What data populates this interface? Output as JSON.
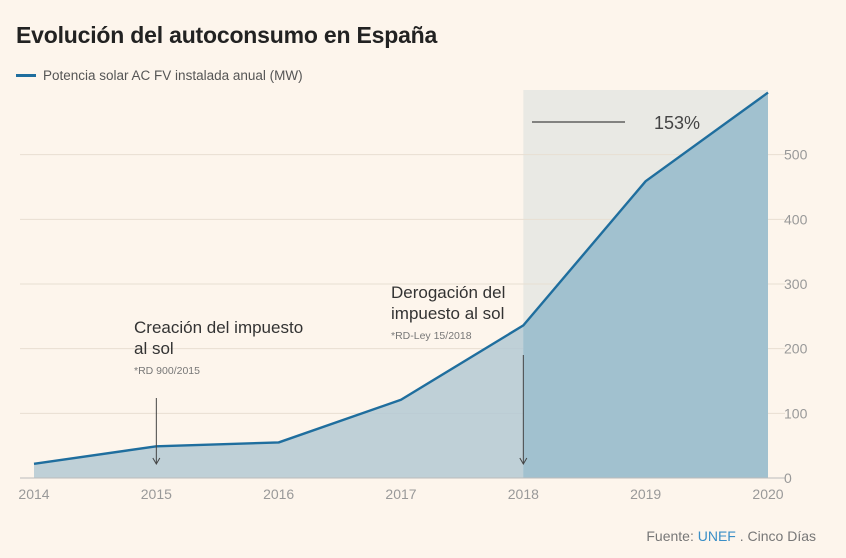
{
  "title": "Evolución del autoconsumo en España",
  "legend": {
    "label": "Potencia solar AC FV instalada anual (MW)",
    "color": "#1f6e9e"
  },
  "source": {
    "prefix": "Fuente: ",
    "link": "UNEF",
    "suffix": " . Cinco Días"
  },
  "colors": {
    "line": "#1f6e9e",
    "area": "#b4c9d3",
    "area_highlight": "#a1c1cf",
    "highlight_bg": "#e9e9e4",
    "grid": "#e8ded2",
    "tick": "#999999"
  },
  "chart_data": {
    "type": "area",
    "title": "Evolución del autoconsumo en España",
    "series": [
      {
        "name": "Potencia solar AC FV instalada anual (MW)",
        "x": [
          2014,
          2015,
          2016,
          2017,
          2018,
          2019,
          2020
        ],
        "values": [
          22,
          49,
          55,
          121,
          236,
          459,
          596
        ]
      }
    ],
    "x_ticks": [
      "2014",
      "2015",
      "2016",
      "2017",
      "2018",
      "2019",
      "2020"
    ],
    "y_ticks": [
      "0",
      "100",
      "200",
      "300",
      "400",
      "500"
    ],
    "ylim": [
      0,
      600
    ],
    "xlim": [
      2014,
      2020
    ],
    "highlight": {
      "from": 2018,
      "to": 2020,
      "label": "153%"
    },
    "annotations": [
      {
        "x": 2015,
        "title_lines": [
          "Creación del impuesto",
          "al sol"
        ],
        "note": "*RD 900/2015"
      },
      {
        "x": 2018,
        "title_lines": [
          "Derogación del",
          "impuesto al sol"
        ],
        "note": "*RD-Ley 15/2018"
      }
    ]
  }
}
